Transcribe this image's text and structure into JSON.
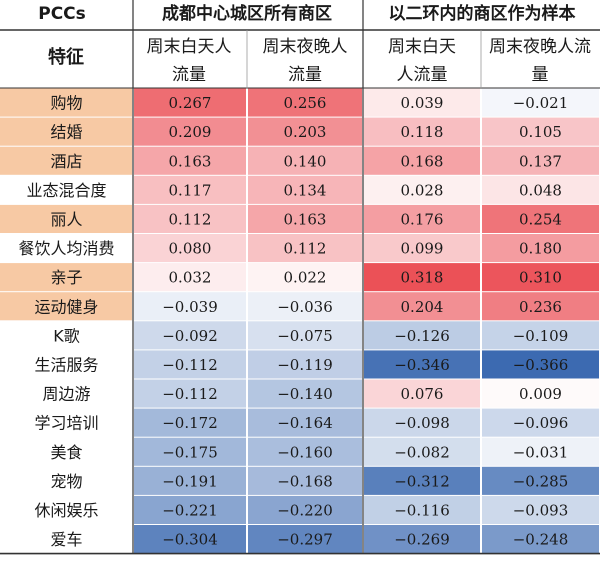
{
  "chart_data": {
    "type": "heatmap",
    "corner_label": "PCCs",
    "feature_label": "特征",
    "groups": [
      {
        "label": "成都中心城区所有商区"
      },
      {
        "label": "以二环内的商区作为样本"
      }
    ],
    "columns": [
      {
        "line1": "周末白天人",
        "line2": "流量"
      },
      {
        "line1": "周末夜晚人",
        "line2": "流量"
      },
      {
        "line1": "周末白天",
        "line2": "人流量"
      },
      {
        "line1": "周末夜晚人流",
        "line2": "量"
      }
    ],
    "rows": [
      {
        "label": "购物",
        "highlight": true,
        "values": [
          "0.267",
          "0.256",
          "0.039",
          "−0.021"
        ]
      },
      {
        "label": "结婚",
        "highlight": true,
        "values": [
          "0.209",
          "0.203",
          "0.118",
          "0.105"
        ]
      },
      {
        "label": "酒店",
        "highlight": true,
        "values": [
          "0.163",
          "0.140",
          "0.168",
          "0.137"
        ]
      },
      {
        "label": "业态混合度",
        "highlight": false,
        "values": [
          "0.117",
          "0.134",
          "0.028",
          "0.048"
        ]
      },
      {
        "label": "丽人",
        "highlight": true,
        "values": [
          "0.112",
          "0.163",
          "0.176",
          "0.254"
        ]
      },
      {
        "label": "餐饮人均消费",
        "highlight": false,
        "values": [
          "0.080",
          "0.112",
          "0.099",
          "0.180"
        ]
      },
      {
        "label": "亲子",
        "highlight": true,
        "values": [
          "0.032",
          "0.022",
          "0.318",
          "0.310"
        ]
      },
      {
        "label": "运动健身",
        "highlight": true,
        "values": [
          "−0.039",
          "−0.036",
          "0.204",
          "0.236"
        ]
      },
      {
        "label": "K歌",
        "highlight": false,
        "values": [
          "−0.092",
          "−0.075",
          "−0.126",
          "−0.109"
        ]
      },
      {
        "label": "生活服务",
        "highlight": false,
        "values": [
          "−0.112",
          "−0.119",
          "−0.346",
          "−0.366"
        ]
      },
      {
        "label": "周边游",
        "highlight": false,
        "values": [
          "−0.112",
          "−0.140",
          "0.076",
          "0.009"
        ]
      },
      {
        "label": "学习培训",
        "highlight": false,
        "values": [
          "−0.172",
          "−0.164",
          "−0.098",
          "−0.096"
        ]
      },
      {
        "label": "美食",
        "highlight": false,
        "values": [
          "−0.175",
          "−0.160",
          "−0.082",
          "−0.031"
        ]
      },
      {
        "label": "宠物",
        "highlight": false,
        "values": [
          "−0.191",
          "−0.168",
          "−0.312",
          "−0.285"
        ]
      },
      {
        "label": "休闲娱乐",
        "highlight": false,
        "values": [
          "−0.221",
          "−0.220",
          "−0.116",
          "−0.093"
        ]
      },
      {
        "label": "爱车",
        "highlight": false,
        "values": [
          "−0.304",
          "−0.297",
          "−0.269",
          "−0.248"
        ]
      }
    ],
    "colors": {
      "positive": "#e8343c",
      "negative": "#3a68b0",
      "highlight_label": "#f7c9a4",
      "rule": "#333333"
    }
  }
}
